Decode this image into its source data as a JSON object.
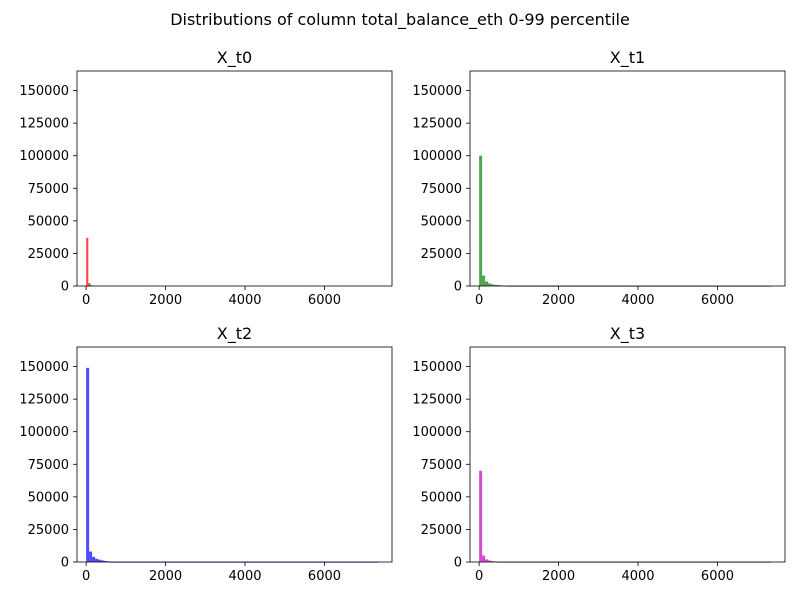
{
  "figure": {
    "title": "Distributions of column total_balance_eth 0-99 percentile"
  },
  "chart_data": [
    {
      "type": "bar",
      "subtype": "histogram",
      "title": "X_t0",
      "xlabel": "",
      "ylabel": "",
      "xlim": [
        -230,
        7700
      ],
      "ylim": [
        0,
        165000
      ],
      "xticks": [
        0,
        2000,
        4000,
        6000
      ],
      "yticks": [
        0,
        25000,
        50000,
        75000,
        100000,
        125000,
        150000
      ],
      "color": "#ff0000",
      "grid": false,
      "bins": [
        {
          "x0": 0,
          "x1": 55,
          "count": 37000
        },
        {
          "x0": 55,
          "x1": 110,
          "count": 2200
        },
        {
          "x0": 110,
          "x1": 165,
          "count": 600
        }
      ]
    },
    {
      "type": "bar",
      "subtype": "histogram",
      "title": "X_t1",
      "xlabel": "",
      "ylabel": "",
      "xlim": [
        -230,
        7700
      ],
      "ylim": [
        0,
        165000
      ],
      "xticks": [
        0,
        2000,
        4000,
        6000
      ],
      "yticks": [
        0,
        25000,
        50000,
        75000,
        100000,
        125000,
        150000
      ],
      "color": "#008000",
      "grid": false,
      "bins": [
        {
          "x0": 0,
          "x1": 75,
          "count": 100000
        },
        {
          "x0": 75,
          "x1": 150,
          "count": 8000
        },
        {
          "x0": 150,
          "x1": 225,
          "count": 3500
        },
        {
          "x0": 225,
          "x1": 300,
          "count": 2000
        },
        {
          "x0": 300,
          "x1": 375,
          "count": 1300
        },
        {
          "x0": 375,
          "x1": 450,
          "count": 900
        },
        {
          "x0": 450,
          "x1": 525,
          "count": 700
        },
        {
          "x0": 525,
          "x1": 600,
          "count": 500
        },
        {
          "x0": 600,
          "x1": 675,
          "count": 400
        },
        {
          "x0": 675,
          "x1": 7350,
          "count": 100
        }
      ]
    },
    {
      "type": "bar",
      "subtype": "histogram",
      "title": "X_t2",
      "xlabel": "",
      "ylabel": "",
      "xlim": [
        -230,
        7700
      ],
      "ylim": [
        0,
        165000
      ],
      "xticks": [
        0,
        2000,
        4000,
        6000
      ],
      "yticks": [
        0,
        25000,
        50000,
        75000,
        100000,
        125000,
        150000
      ],
      "color": "#0000ff",
      "grid": false,
      "bins": [
        {
          "x0": 0,
          "x1": 75,
          "count": 149000
        },
        {
          "x0": 75,
          "x1": 150,
          "count": 8000
        },
        {
          "x0": 150,
          "x1": 225,
          "count": 4000
        },
        {
          "x0": 225,
          "x1": 300,
          "count": 2500
        },
        {
          "x0": 300,
          "x1": 375,
          "count": 1800
        },
        {
          "x0": 375,
          "x1": 450,
          "count": 1200
        },
        {
          "x0": 450,
          "x1": 525,
          "count": 800
        },
        {
          "x0": 525,
          "x1": 600,
          "count": 500
        },
        {
          "x0": 600,
          "x1": 7350,
          "count": 100
        }
      ]
    },
    {
      "type": "bar",
      "subtype": "histogram",
      "title": "X_t3",
      "xlabel": "",
      "ylabel": "",
      "xlim": [
        -230,
        7700
      ],
      "ylim": [
        0,
        165000
      ],
      "xticks": [
        0,
        2000,
        4000,
        6000
      ],
      "yticks": [
        0,
        25000,
        50000,
        75000,
        100000,
        125000,
        150000
      ],
      "color": "#c000c0",
      "grid": false,
      "bins": [
        {
          "x0": 0,
          "x1": 75,
          "count": 70000
        },
        {
          "x0": 75,
          "x1": 150,
          "count": 5000
        },
        {
          "x0": 150,
          "x1": 225,
          "count": 2000
        },
        {
          "x0": 225,
          "x1": 300,
          "count": 1200
        },
        {
          "x0": 300,
          "x1": 375,
          "count": 700
        },
        {
          "x0": 375,
          "x1": 450,
          "count": 400
        },
        {
          "x0": 450,
          "x1": 7350,
          "count": 100
        }
      ]
    }
  ]
}
